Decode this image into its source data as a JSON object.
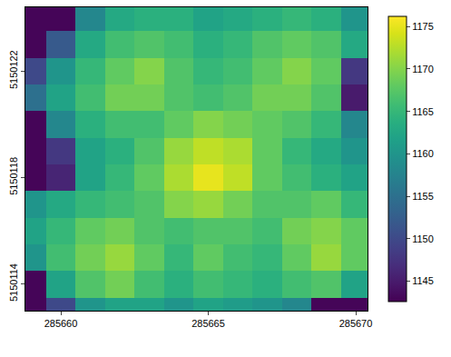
{
  "chart_data": {
    "type": "heatmap",
    "color": "viridis",
    "x": [
      285659,
      285660,
      285661,
      285662,
      285663,
      285664,
      285665,
      285666,
      285667,
      285668,
      285669,
      285670
    ],
    "y": [
      5150113,
      5150114,
      5150115,
      5150116,
      5150117,
      5150118,
      5150119,
      5150120,
      5150121,
      5150122,
      5150123,
      5150124
    ],
    "cells": [
      [
        1143,
        1150,
        1160,
        1162,
        1162,
        1160,
        1162,
        1161,
        1160,
        1158,
        1143,
        1143
      ],
      [
        1143,
        1162,
        1167,
        1169,
        1166,
        1164,
        1166,
        1165,
        1164,
        1166,
        1167,
        1162
      ],
      [
        1160,
        1166,
        1169,
        1171,
        1168,
        1165,
        1168,
        1166,
        1165,
        1168,
        1171,
        1168
      ],
      [
        1162,
        1165,
        1168,
        1169,
        1167,
        1166,
        1167,
        1167,
        1166,
        1169,
        1170,
        1168
      ],
      [
        1160,
        1163,
        1165,
        1166,
        1167,
        1170,
        1171,
        1169,
        1167,
        1167,
        1168,
        1165
      ],
      [
        1143,
        1146,
        1162,
        1165,
        1168,
        1172,
        1175,
        1173,
        1168,
        1166,
        1164,
        1162
      ],
      [
        1143,
        1148,
        1162,
        1164,
        1167,
        1171,
        1173,
        1172,
        1168,
        1165,
        1163,
        1160
      ],
      [
        1143,
        1158,
        1164,
        1166,
        1166,
        1168,
        1170,
        1169,
        1168,
        1167,
        1165,
        1158
      ],
      [
        1155,
        1162,
        1166,
        1169,
        1169,
        1167,
        1166,
        1167,
        1169,
        1169,
        1167,
        1145
      ],
      [
        1150,
        1160,
        1165,
        1168,
        1170,
        1167,
        1165,
        1166,
        1168,
        1170,
        1168,
        1148
      ],
      [
        1143,
        1152,
        1163,
        1166,
        1167,
        1166,
        1164,
        1165,
        1167,
        1168,
        1167,
        1163
      ],
      [
        1143,
        1143,
        1158,
        1163,
        1164,
        1164,
        1162,
        1163,
        1164,
        1165,
        1164,
        1160
      ]
    ],
    "xlim": [
      285658.8,
      285670.4
    ],
    "ylim": [
      5150113.0,
      5150124.4
    ],
    "xticks": [
      285660,
      285665,
      285670
    ],
    "yticks": [
      5150114,
      5150118,
      5150122
    ],
    "zlim": [
      1142.6,
      1176.2
    ],
    "zticks": [
      1145,
      1150,
      1155,
      1160,
      1165,
      1170,
      1175
    ]
  }
}
